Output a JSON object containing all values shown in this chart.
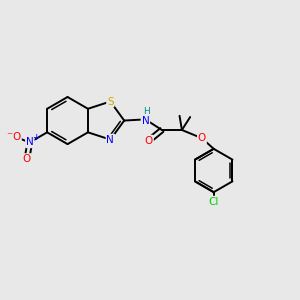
{
  "bg_color": "#e8e8e8",
  "bond_color": "#000000",
  "atom_colors": {
    "S": "#ccaa00",
    "N": "#0000ff",
    "O": "#ff0000",
    "Cl": "#00cc00",
    "H": "#008888",
    "C": "#000000"
  },
  "lw": 1.4,
  "lw2": 1.1,
  "fs": 7.5
}
